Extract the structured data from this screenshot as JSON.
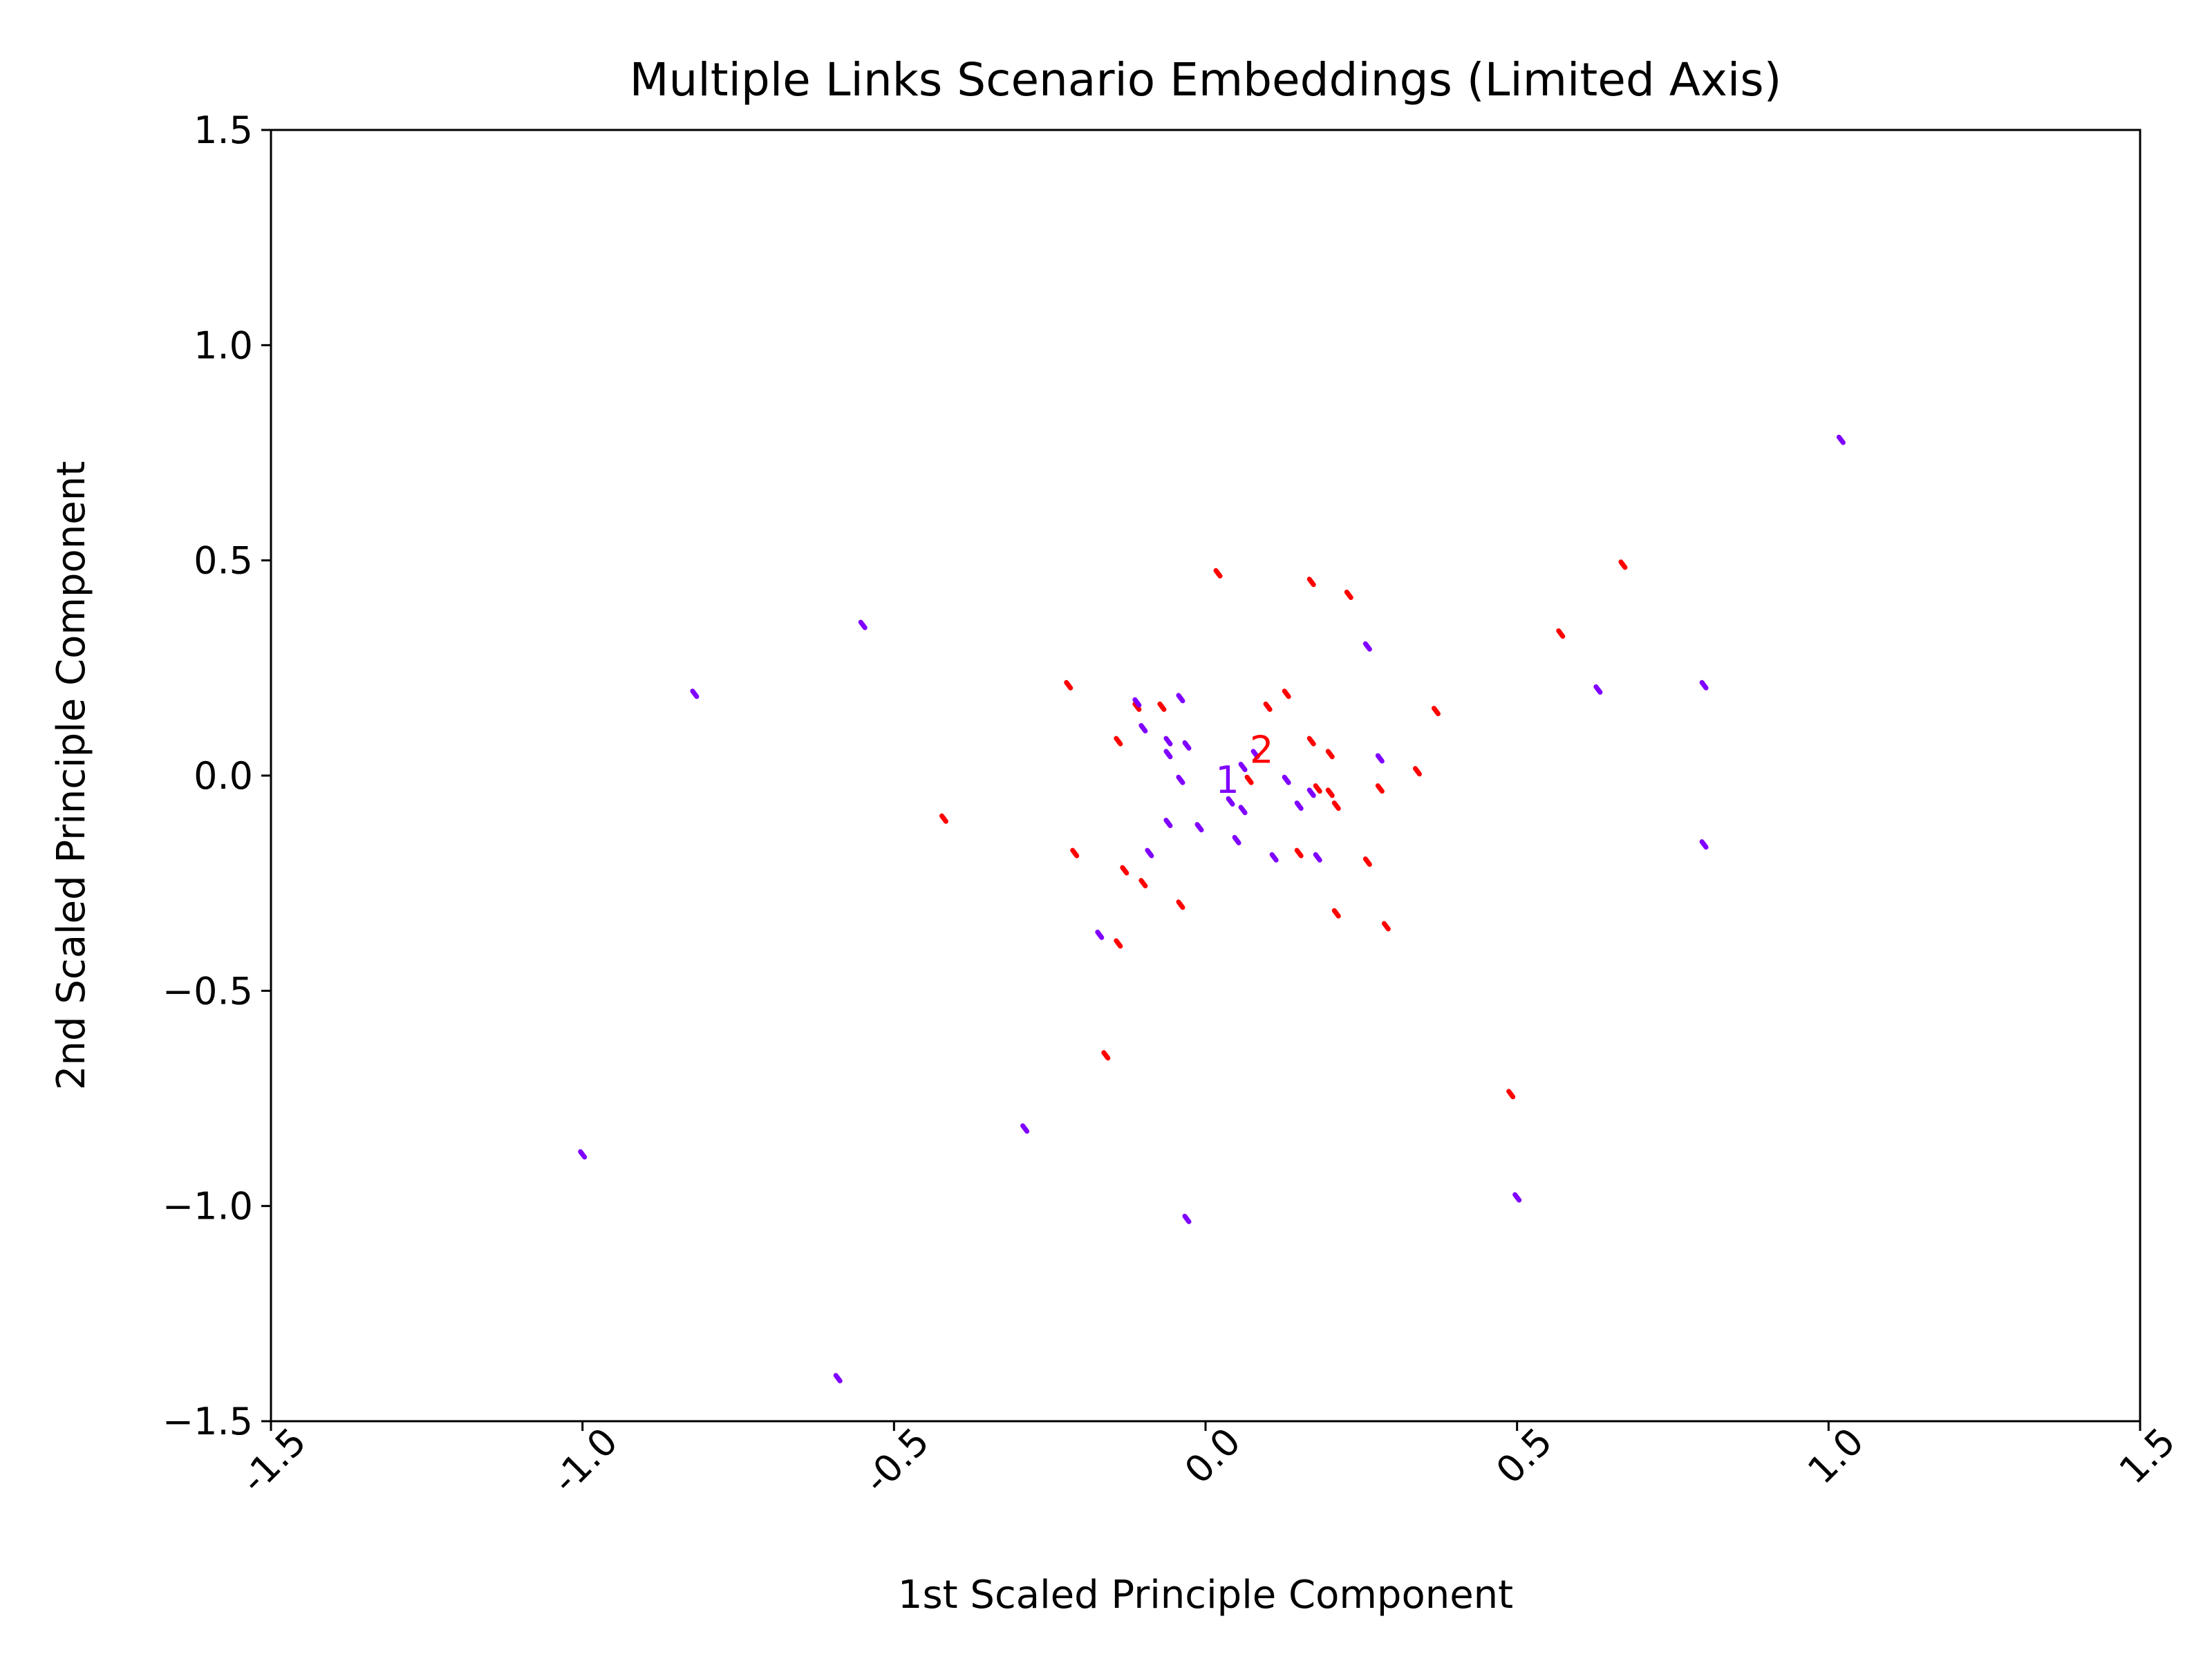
{
  "chart_data": {
    "type": "scatter",
    "title": "Multiple Links Scenario Embeddings (Limited Axis)",
    "xlabel": "1st Scaled Principle Component",
    "ylabel": "2nd Scaled Principle Component",
    "xlim": [
      -1.5,
      1.5
    ],
    "ylim": [
      -1.5,
      1.5
    ],
    "x_ticks": [
      -1.5,
      -1.0,
      -0.5,
      0.0,
      0.5,
      1.0,
      1.5
    ],
    "y_ticks": [
      -1.5,
      -1.0,
      -0.5,
      0.0,
      0.5,
      1.0,
      1.5
    ],
    "x_tick_labels": [
      "-1.5",
      "-1.0",
      "-0.5",
      "0.0",
      "0.5",
      "1.0",
      "1.5"
    ],
    "y_tick_labels": [
      "−1.5",
      "−1.0",
      "−0.5",
      "0.0",
      "0.5",
      "1.0",
      "1.5"
    ],
    "x_tick_rotation": -45,
    "grid": false,
    "legend": "none",
    "series": [
      {
        "color": "#ff0000",
        "points": [
          [
            0.02,
            0.47
          ],
          [
            0.17,
            0.45
          ],
          [
            0.23,
            0.42
          ],
          [
            0.67,
            0.49
          ],
          [
            0.57,
            0.33
          ],
          [
            -0.22,
            0.21
          ],
          [
            0.1,
            0.16
          ],
          [
            0.13,
            0.19
          ],
          [
            0.37,
            0.15
          ],
          [
            -0.11,
            0.16
          ],
          [
            -0.07,
            0.16
          ],
          [
            -0.14,
            0.08
          ],
          [
            0.17,
            0.08
          ],
          [
            0.2,
            0.05
          ],
          [
            0.34,
            0.01
          ],
          [
            0.07,
            -0.01
          ],
          [
            0.18,
            -0.03
          ],
          [
            0.2,
            -0.04
          ],
          [
            0.28,
            -0.03
          ],
          [
            0.21,
            -0.07
          ],
          [
            -0.42,
            -0.1
          ],
          [
            -0.21,
            -0.18
          ],
          [
            0.15,
            -0.18
          ],
          [
            0.26,
            -0.2
          ],
          [
            -0.13,
            -0.22
          ],
          [
            -0.1,
            -0.25
          ],
          [
            -0.04,
            -0.3
          ],
          [
            0.21,
            -0.32
          ],
          [
            0.29,
            -0.35
          ],
          [
            -0.14,
            -0.39
          ],
          [
            -0.16,
            -0.65
          ],
          [
            0.49,
            -0.74
          ]
        ]
      },
      {
        "color": "#8000ff",
        "points": [
          [
            1.02,
            0.78
          ],
          [
            -0.55,
            0.35
          ],
          [
            -0.82,
            0.19
          ],
          [
            0.26,
            0.3
          ],
          [
            0.63,
            0.2
          ],
          [
            0.8,
            0.21
          ],
          [
            -0.11,
            0.17
          ],
          [
            -0.04,
            0.18
          ],
          [
            -0.1,
            0.11
          ],
          [
            -0.06,
            0.08
          ],
          [
            -0.03,
            0.07
          ],
          [
            -0.06,
            0.05
          ],
          [
            0.08,
            0.05
          ],
          [
            0.28,
            0.04
          ],
          [
            0.06,
            0.02
          ],
          [
            -0.04,
            -0.01
          ],
          [
            0.13,
            -0.01
          ],
          [
            0.17,
            -0.04
          ],
          [
            0.04,
            -0.06
          ],
          [
            0.06,
            -0.08
          ],
          [
            0.15,
            -0.07
          ],
          [
            -0.06,
            -0.11
          ],
          [
            -0.01,
            -0.12
          ],
          [
            0.05,
            -0.15
          ],
          [
            -0.09,
            -0.18
          ],
          [
            0.11,
            -0.19
          ],
          [
            0.18,
            -0.19
          ],
          [
            0.8,
            -0.16
          ],
          [
            -0.17,
            -0.37
          ],
          [
            -0.29,
            -0.82
          ],
          [
            -1.0,
            -0.88
          ],
          [
            0.5,
            -0.98
          ],
          [
            -0.03,
            -1.03
          ],
          [
            -0.59,
            -1.4
          ]
        ]
      }
    ],
    "annotations": [
      {
        "text": "2",
        "x": 0.09,
        "y": 0.03,
        "color": "#ff0000"
      },
      {
        "text": "1",
        "x": 0.035,
        "y": -0.04,
        "color": "#8000ff"
      }
    ]
  }
}
